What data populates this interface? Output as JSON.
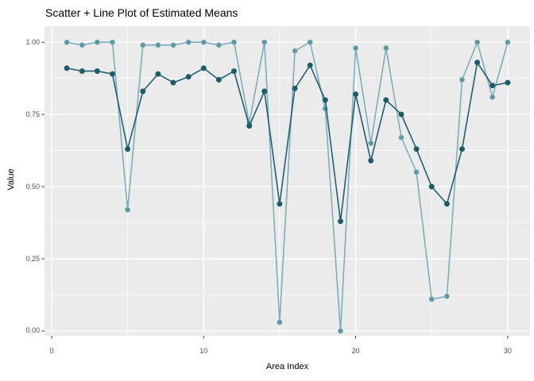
{
  "title": "Scatter + Line Plot of Estimated Means",
  "chart_data": {
    "type": "line",
    "title": "Scatter + Line Plot of Estimated Means",
    "xlabel": "Area Index",
    "ylabel": "Value",
    "grid": true,
    "legend": "none",
    "panel_bg": "#EBEBEB",
    "grid_color": "#FFFFFF",
    "tick_color": "#333333",
    "tick_label_color": "#4D4D4D",
    "xlim": [
      -0.47,
      31.47
    ],
    "ylim": [
      -0.0165,
      1.0555
    ],
    "x_ticks": [
      0,
      10,
      20,
      30
    ],
    "y_ticks": [
      0,
      0.25,
      0.5,
      0.75,
      1
    ],
    "x_minor_ticks": [
      5,
      15,
      25
    ],
    "y_minor_ticks": [
      0.125,
      0.375,
      0.625,
      0.875
    ],
    "x": [
      1,
      2,
      3,
      4,
      5,
      6,
      7,
      8,
      9,
      10,
      11,
      12,
      13,
      14,
      15,
      16,
      17,
      18,
      19,
      20,
      21,
      22,
      23,
      24,
      25,
      26,
      27,
      28,
      29,
      30
    ],
    "series": [
      {
        "name": "light-teal-series",
        "line_color": "#7FADB8",
        "point_color": "#5C96A3",
        "point_edge": "#8FB9C2",
        "values": [
          1.0,
          0.99,
          1.0,
          1.0,
          0.42,
          0.99,
          0.99,
          0.99,
          1.0,
          1.0,
          0.99,
          1.0,
          0.72,
          1.0,
          0.03,
          0.97,
          1.0,
          0.77,
          0.0,
          0.98,
          0.65,
          0.98,
          0.67,
          0.55,
          0.11,
          0.12,
          0.87,
          1.0,
          0.81,
          1.0
        ]
      },
      {
        "name": "dark-teal-series",
        "line_color": "#21606E",
        "point_color": "#1D5B6A",
        "point_edge": "#21606E",
        "values": [
          0.91,
          0.9,
          0.9,
          0.89,
          0.63,
          0.83,
          0.89,
          0.86,
          0.88,
          0.91,
          0.87,
          0.9,
          0.71,
          0.83,
          0.44,
          0.84,
          0.92,
          0.8,
          0.38,
          0.82,
          0.59,
          0.8,
          0.75,
          0.63,
          0.5,
          0.44,
          0.63,
          0.93,
          0.85,
          0.86
        ]
      }
    ]
  }
}
